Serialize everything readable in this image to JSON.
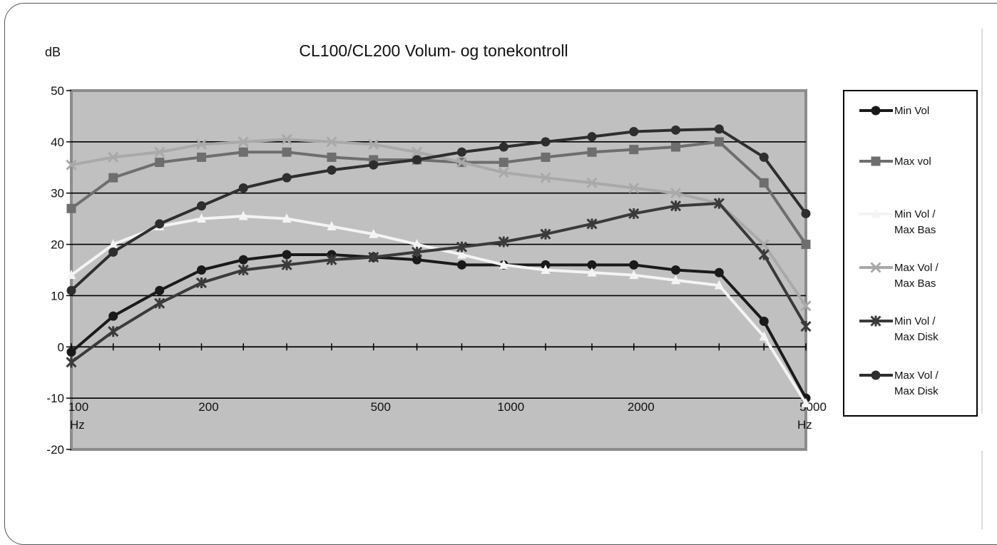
{
  "chart_data": {
    "type": "line",
    "title": "CL100/CL200 Volum- og tonekontroll",
    "ylabel": "dB",
    "xscale": "log",
    "xlim": [
      100,
      5000
    ],
    "ylim": [
      -20,
      50
    ],
    "yticks": [
      50,
      40,
      30,
      20,
      10,
      0,
      -10,
      -20
    ],
    "ytick_labels": [
      "50",
      "40",
      "30",
      "20",
      "10",
      "0",
      "-10",
      "-20"
    ],
    "xtick_labels": [
      {
        "value": 100,
        "label": "100"
      },
      {
        "value": 200,
        "label": "200"
      },
      {
        "value": 500,
        "label": "500"
      },
      {
        "value": 1000,
        "label": "1000"
      },
      {
        "value": 2000,
        "label": "2000"
      },
      {
        "value": 5000,
        "label": "5000"
      }
    ],
    "xunit_label": "Hz",
    "grid": "horizontal",
    "legend_position": "right",
    "x": [
      100,
      125,
      160,
      200,
      250,
      315,
      400,
      500,
      630,
      800,
      1000,
      1250,
      1600,
      2000,
      2500,
      3150,
      4000,
      5000
    ],
    "series": [
      {
        "name": "Min Vol",
        "line1": "Min Vol",
        "line2": "",
        "color": "#1a1a1a",
        "marker": "circle",
        "values": [
          -1,
          6,
          11,
          15,
          17,
          18,
          18,
          17.5,
          17,
          16,
          16,
          16,
          16,
          16,
          15,
          14.5,
          5,
          -10
        ]
      },
      {
        "name": "Max vol",
        "line1": "Max vol",
        "line2": "",
        "color": "#6e6e6e",
        "marker": "square",
        "values": [
          27,
          33,
          36,
          37,
          38,
          38,
          37,
          36.5,
          36.5,
          36,
          36,
          37,
          38,
          38.5,
          39,
          40,
          32,
          20
        ]
      },
      {
        "name": "Min Vol / Max Bas",
        "line1": "Min Vol /",
        "line2": "Max Bas",
        "color": "#f4f4f4",
        "marker": "triangle",
        "values": [
          14,
          20,
          23.5,
          25,
          25.5,
          25,
          23.5,
          22,
          20,
          18,
          16,
          15,
          14.5,
          14,
          13,
          12,
          2,
          -11
        ]
      },
      {
        "name": "Max Vol / Max Bas",
        "line1": "Max Vol /",
        "line2": "Max Bas",
        "color": "#a9a9a9",
        "marker": "x",
        "values": [
          35.5,
          37,
          38,
          39.5,
          40,
          40.5,
          40,
          39.5,
          38,
          36,
          34,
          33,
          32,
          31,
          30,
          28,
          20,
          8
        ]
      },
      {
        "name": "Min Vol / Max Disk",
        "line1": "Min Vol /",
        "line2": "Max Disk",
        "color": "#3a3a3a",
        "marker": "star",
        "values": [
          -3,
          3,
          8.5,
          12.5,
          15,
          16,
          17,
          17.5,
          18.5,
          19.5,
          20.5,
          22,
          24,
          26,
          27.5,
          28,
          18,
          4
        ]
      },
      {
        "name": "Max Vol / Max Disk",
        "line1": "Max Vol /",
        "line2": "Max Disk",
        "color": "#2e2e2e",
        "marker": "circle",
        "values": [
          11,
          18.5,
          24,
          27.5,
          31,
          33,
          34.5,
          35.5,
          36.5,
          38,
          39,
          40,
          41,
          42,
          42.3,
          42.5,
          37,
          26
        ]
      }
    ]
  }
}
